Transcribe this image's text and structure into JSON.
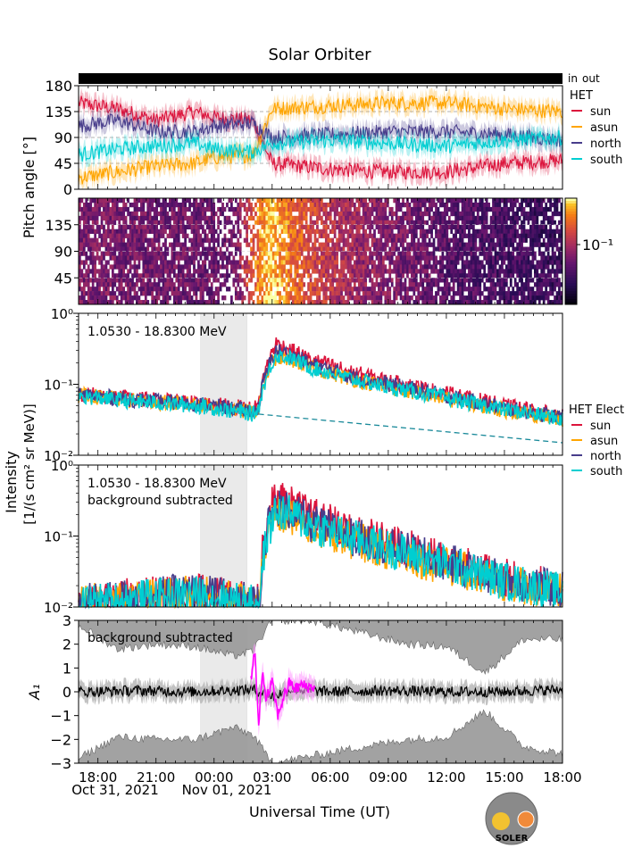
{
  "title": "Solar Orbiter",
  "colors": {
    "sun": "#dc143c",
    "asun": "#ffa500",
    "north": "#483d8b",
    "south": "#00ced1",
    "in": "#ff0000",
    "out": "#0000ff",
    "subtracted": "#ff00ff",
    "shade": "#d9d9d9",
    "band": "#999999",
    "noise": "#bbbbbb"
  },
  "time_axis": {
    "label": "Universal Time (UT)",
    "tick_labels": [
      "18:00",
      "21:00",
      "00:00",
      "03:00",
      "06:00",
      "09:00",
      "12:00",
      "15:00",
      "18:00"
    ],
    "tick_hours": [
      0,
      3,
      6,
      9,
      12,
      15,
      18,
      21,
      24
    ],
    "range_hours": [
      -1,
      24
    ],
    "hour_zero": "Oct 31, 2021 18:00",
    "date_labels": [
      "Oct 31, 2021",
      "Nov 01, 2021"
    ]
  },
  "shaded_interval_hours": [
    5.3,
    7.7
  ],
  "inout_bar": {
    "in_label": "in",
    "out_label": "out"
  },
  "shared_ylabel": {
    "line1": "Intensity",
    "line2": "[1/(s cm² sr MeV)]"
  },
  "logo_text": "SOLER",
  "chart_data": [
    {
      "panel": "pitch-angle",
      "type": "line",
      "ylabel": "Pitch angle [°]",
      "ylim": [
        0,
        180
      ],
      "yticks": [
        0,
        45,
        90,
        135,
        180
      ],
      "grid": "dashed",
      "legend_title": "HET",
      "series": [
        {
          "name": "sun",
          "x": [
            -1,
            1,
            3,
            5,
            6,
            8,
            9,
            12,
            15,
            18,
            21,
            24
          ],
          "y": [
            150,
            140,
            120,
            135,
            125,
            120,
            45,
            35,
            30,
            30,
            45,
            50
          ]
        },
        {
          "name": "asun",
          "x": [
            -1,
            1,
            3,
            5,
            6,
            8,
            9,
            12,
            15,
            18,
            21,
            24
          ],
          "y": [
            20,
            30,
            40,
            45,
            55,
            60,
            140,
            145,
            150,
            150,
            140,
            135
          ]
        },
        {
          "name": "north",
          "x": [
            -1,
            1,
            3,
            5,
            6,
            8,
            9,
            12,
            15,
            18,
            21,
            24
          ],
          "y": [
            110,
            120,
            100,
            100,
            110,
            115,
            90,
            95,
            100,
            100,
            95,
            85
          ]
        },
        {
          "name": "south",
          "x": [
            -1,
            1,
            3,
            5,
            6,
            8,
            9,
            12,
            15,
            18,
            21,
            24
          ],
          "y": [
            60,
            70,
            75,
            80,
            70,
            65,
            80,
            85,
            80,
            75,
            85,
            90
          ]
        }
      ]
    },
    {
      "panel": "pitch-angle-spectrogram",
      "type": "heatmap",
      "ylim": [
        0,
        180
      ],
      "yticks": [
        45,
        90,
        135
      ],
      "colorbar_label": "10⁻¹",
      "colormap": "inferno",
      "intensity_profile": {
        "x": [
          -1,
          7,
          8.3,
          9,
          10,
          11,
          13,
          18,
          24
        ],
        "v": [
          0.45,
          0.4,
          0.85,
          0.95,
          0.8,
          0.7,
          0.55,
          0.35,
          0.25
        ]
      }
    },
    {
      "panel": "intensity",
      "type": "line",
      "yscale": "log",
      "ylim": [
        0.01,
        1
      ],
      "ytick_labels": [
        "10⁻²",
        "10⁻¹",
        "10⁰"
      ],
      "annotation": "1.0530 - 18.8300 MeV",
      "legend_title": "HET Elect",
      "background_fit": {
        "x": [
          8.3,
          24
        ],
        "y": [
          0.038,
          0.015
        ]
      },
      "series": [
        {
          "name": "sun",
          "x": [
            -1,
            2,
            5,
            8,
            8.3,
            8.8,
            9.2,
            10,
            11,
            13,
            15,
            17,
            19,
            21,
            24
          ],
          "y": [
            0.075,
            0.062,
            0.055,
            0.045,
            0.05,
            0.2,
            0.38,
            0.3,
            0.22,
            0.15,
            0.11,
            0.085,
            0.065,
            0.05,
            0.035
          ]
        },
        {
          "name": "asun",
          "x": [
            -1,
            2,
            5,
            8,
            8.3,
            8.8,
            9.2,
            10,
            11,
            13,
            15,
            17,
            19,
            21,
            24
          ],
          "y": [
            0.07,
            0.058,
            0.052,
            0.04,
            0.045,
            0.15,
            0.24,
            0.22,
            0.17,
            0.12,
            0.09,
            0.07,
            0.055,
            0.043,
            0.032
          ]
        },
        {
          "name": "north",
          "x": [
            -1,
            2,
            5,
            8,
            8.3,
            8.8,
            9.2,
            10,
            11,
            13,
            15,
            17,
            19,
            21,
            24
          ],
          "y": [
            0.072,
            0.06,
            0.053,
            0.042,
            0.046,
            0.17,
            0.3,
            0.26,
            0.19,
            0.13,
            0.1,
            0.078,
            0.06,
            0.046,
            0.034
          ]
        },
        {
          "name": "south",
          "x": [
            -1,
            2,
            5,
            8,
            8.3,
            8.8,
            9.2,
            10,
            11,
            13,
            15,
            17,
            19,
            21,
            24
          ],
          "y": [
            0.068,
            0.057,
            0.05,
            0.038,
            0.044,
            0.14,
            0.26,
            0.23,
            0.17,
            0.12,
            0.09,
            0.072,
            0.056,
            0.044,
            0.032
          ]
        }
      ]
    },
    {
      "panel": "intensity-bg-subtracted",
      "type": "line",
      "yscale": "log",
      "ylim": [
        0.01,
        1
      ],
      "ytick_labels": [
        "10⁻²",
        "10⁻¹",
        "10⁰"
      ],
      "annotation_line1": "1.0530 - 18.8300 MeV",
      "annotation_line2": "background subtracted",
      "series": [
        {
          "name": "sun",
          "x": [
            -1,
            2,
            5,
            8,
            8.4,
            8.8,
            9.2,
            10,
            11,
            13,
            15,
            17,
            19,
            21,
            24
          ],
          "y": [
            0.011,
            0.014,
            0.016,
            0.012,
            0.015,
            0.18,
            0.37,
            0.27,
            0.19,
            0.12,
            0.08,
            0.055,
            0.038,
            0.026,
            0.018
          ]
        },
        {
          "name": "asun",
          "x": [
            -1,
            2,
            5,
            8,
            8.4,
            8.8,
            9.2,
            10,
            11,
            13,
            15,
            17,
            19,
            21,
            24
          ],
          "y": [
            0.011,
            0.013,
            0.015,
            0.011,
            0.014,
            0.12,
            0.2,
            0.18,
            0.13,
            0.09,
            0.062,
            0.044,
            0.031,
            0.022,
            0.016
          ]
        },
        {
          "name": "north",
          "x": [
            -1,
            2,
            5,
            8,
            8.4,
            8.8,
            9.2,
            10,
            11,
            13,
            15,
            17,
            19,
            21,
            24
          ],
          "y": [
            0.011,
            0.014,
            0.016,
            0.012,
            0.015,
            0.14,
            0.26,
            0.22,
            0.15,
            0.1,
            0.07,
            0.05,
            0.035,
            0.024,
            0.017
          ]
        },
        {
          "name": "south",
          "x": [
            -1,
            2,
            5,
            8,
            8.4,
            8.8,
            9.2,
            10,
            11,
            13,
            15,
            17,
            19,
            21,
            24
          ],
          "y": [
            0.011,
            0.013,
            0.015,
            0.011,
            0.014,
            0.11,
            0.22,
            0.2,
            0.14,
            0.095,
            0.066,
            0.047,
            0.033,
            0.023,
            0.016
          ]
        }
      ]
    },
    {
      "panel": "anisotropy",
      "type": "line",
      "ylabel": "A₁",
      "ylim": [
        -3,
        3
      ],
      "yticks": [
        -3,
        -2,
        -1,
        0,
        1,
        2,
        3
      ],
      "annotation": "background subtracted",
      "series": [
        {
          "name": "A1",
          "x": [
            -1,
            2,
            5,
            8,
            9,
            10,
            12,
            15,
            18,
            21,
            24
          ],
          "y": [
            0,
            0.05,
            0,
            0.1,
            -0.2,
            0.1,
            0,
            0.05,
            0,
            0,
            0.1
          ]
        },
        {
          "name": "A1-bg-subtracted",
          "x": [
            7.9,
            8.1,
            8.3,
            8.5,
            8.7,
            9.0,
            9.3,
            9.6,
            9.9,
            10.2,
            10.5,
            10.8,
            11.2
          ],
          "y": [
            0.5,
            1.8,
            -1.5,
            0.8,
            -0.3,
            0.4,
            -1.0,
            -0.2,
            0.4,
            0.1,
            0.3,
            0.2,
            0.2
          ]
        }
      ],
      "upper_band": {
        "x": [
          -1,
          1,
          3,
          5,
          7,
          8,
          9,
          11,
          13,
          16,
          18,
          20,
          22,
          24
        ],
        "y": [
          2.8,
          1.8,
          2.0,
          1.9,
          1.5,
          1.7,
          3.0,
          3.0,
          2.6,
          2.0,
          1.9,
          0.8,
          2.2,
          2.2
        ]
      },
      "lower_band": {
        "x": [
          -1,
          1,
          3,
          5,
          7,
          8,
          9,
          11,
          13,
          16,
          18,
          20,
          22,
          24
        ],
        "y": [
          -2.8,
          -1.9,
          -2.0,
          -2.0,
          -1.5,
          -1.8,
          -3.0,
          -2.7,
          -2.4,
          -2.0,
          -1.9,
          -0.8,
          -2.3,
          -2.6
        ]
      }
    }
  ]
}
